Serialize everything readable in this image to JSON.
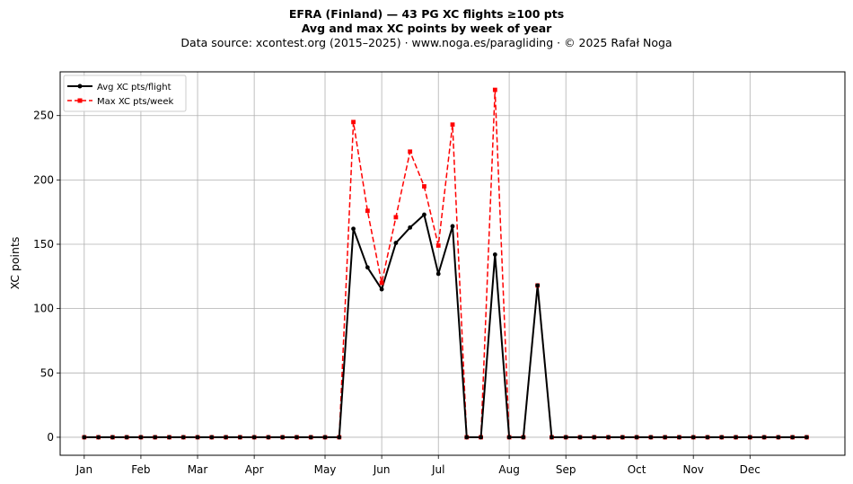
{
  "chart_data": {
    "type": "line",
    "title": "EFRA (Finland)  —  43 PG XC flights ≥100 pts",
    "subtitle": "Avg and max XC points by week of year",
    "source": "Data source: xcontest.org (2015–2025)  ·  www.noga.es/paragliding  ·  © 2025 Rafał Noga",
    "xlabel": "",
    "ylabel": "XC points",
    "ylim": [
      -14,
      284
    ],
    "xlim": [
      -1.7,
      53.7
    ],
    "yticks": [
      0,
      50,
      100,
      150,
      200,
      250
    ],
    "grid": true,
    "legend_position": "top-left",
    "month_ticks": [
      {
        "label": "Jan",
        "week": 0
      },
      {
        "label": "Feb",
        "week": 4
      },
      {
        "label": "Mar",
        "week": 8
      },
      {
        "label": "Apr",
        "week": 12
      },
      {
        "label": "May",
        "week": 17
      },
      {
        "label": "Jun",
        "week": 21
      },
      {
        "label": "Jul",
        "week": 25
      },
      {
        "label": "Aug",
        "week": 30
      },
      {
        "label": "Sep",
        "week": 34
      },
      {
        "label": "Oct",
        "week": 39
      },
      {
        "label": "Nov",
        "week": 43
      },
      {
        "label": "Dec",
        "week": 47
      }
    ],
    "x": [
      0,
      1,
      2,
      3,
      4,
      5,
      6,
      7,
      8,
      9,
      10,
      11,
      12,
      13,
      14,
      15,
      16,
      17,
      18,
      19,
      20,
      21,
      22,
      23,
      24,
      25,
      26,
      27,
      28,
      29,
      30,
      31,
      32,
      33,
      34,
      35,
      36,
      37,
      38,
      39,
      40,
      41,
      42,
      43,
      44,
      45,
      46,
      47,
      48,
      49,
      50,
      51
    ],
    "series": [
      {
        "name": "Avg XC pts/flight",
        "color": "#000000",
        "style": "solid",
        "marker": "circle",
        "values": [
          0,
          0,
          0,
          0,
          0,
          0,
          0,
          0,
          0,
          0,
          0,
          0,
          0,
          0,
          0,
          0,
          0,
          0,
          0,
          162,
          132,
          115,
          151,
          163,
          173,
          127,
          164,
          0,
          0,
          142,
          0,
          0,
          118,
          0,
          0,
          0,
          0,
          0,
          0,
          0,
          0,
          0,
          0,
          0,
          0,
          0,
          0,
          0,
          0,
          0,
          0,
          0
        ]
      },
      {
        "name": "Max XC pts/week",
        "color": "#ff0000",
        "style": "dashed",
        "marker": "square",
        "values": [
          0,
          0,
          0,
          0,
          0,
          0,
          0,
          0,
          0,
          0,
          0,
          0,
          0,
          0,
          0,
          0,
          0,
          0,
          0,
          245,
          176,
          120,
          171,
          222,
          195,
          149,
          243,
          0,
          0,
          270,
          0,
          0,
          118,
          0,
          0,
          0,
          0,
          0,
          0,
          0,
          0,
          0,
          0,
          0,
          0,
          0,
          0,
          0,
          0,
          0,
          0,
          0
        ]
      }
    ]
  }
}
